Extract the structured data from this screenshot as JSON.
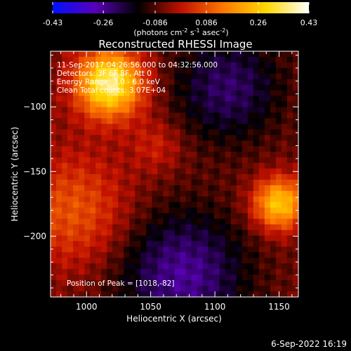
{
  "colorbar": {
    "ticks": [
      {
        "value": -0.43,
        "label": "-0.43"
      },
      {
        "value": -0.26,
        "label": "-0.26"
      },
      {
        "value": -0.086,
        "label": "-0.086"
      },
      {
        "value": 0.086,
        "label": "0.086"
      },
      {
        "value": 0.26,
        "label": "0.26"
      },
      {
        "value": 0.43,
        "label": "0.43"
      }
    ],
    "units_prefix": "(photons cm",
    "units_exp1": "-2",
    "units_mid1": " s",
    "units_exp2": "-1",
    "units_mid2": " asec",
    "units_exp3": "-2",
    "units_suffix": ")",
    "colors": [
      "#0010ff",
      "#5a00b8",
      "#000000",
      "#c01000",
      "#ff7800",
      "#ffd800",
      "#ffffff"
    ]
  },
  "chart_data": {
    "type": "heatmap",
    "title": "Reconstructed RHESSI Image",
    "xlabel": "Heliocentric X (arcsec)",
    "ylabel": "Heliocentric Y (arcsec)",
    "xlim": [
      972,
      1165
    ],
    "ylim": [
      -247,
      -57
    ],
    "xticks": [
      1000,
      1050,
      1100,
      1150
    ],
    "yticks": [
      -100,
      -150,
      -200
    ],
    "annotations": [
      "11-Sep-2017 04:26:56.000 to 04:32:56.000",
      "Detectors: 3F 6F 8F, Att 0",
      "Energy Range: 3.0 - 6.0 keV",
      "Clean   Total counts: 3.07E+04"
    ],
    "peak_label": "Position of Peak = [1018,-82]",
    "sources": [
      {
        "x": 1018,
        "y": -82,
        "intensity": 0.43,
        "sigma": 18
      },
      {
        "x": 1150,
        "y": -175,
        "intensity": 0.33,
        "sigma": 14
      },
      {
        "x": 990,
        "y": -180,
        "intensity": 0.15,
        "sigma": 30
      },
      {
        "x": 1055,
        "y": -130,
        "intensity": 0.08,
        "sigma": 14
      },
      {
        "x": 1110,
        "y": -85,
        "intensity": -0.16,
        "sigma": 30
      },
      {
        "x": 1075,
        "y": -230,
        "intensity": -0.2,
        "sigma": 35
      }
    ]
  },
  "footer": {
    "date": "6-Sep-2022 16:19"
  }
}
